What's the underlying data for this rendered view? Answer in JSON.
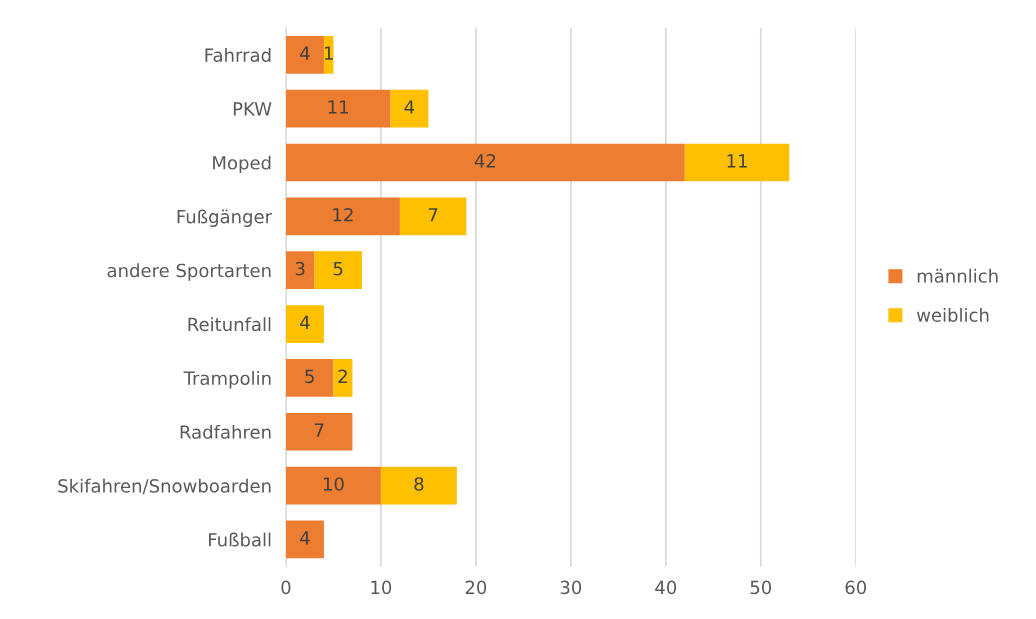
{
  "chart_data": {
    "type": "bar",
    "orientation": "horizontal",
    "stacked": true,
    "categories": [
      "Fahrrad",
      "PKW",
      "Moped",
      "Fußgänger",
      "andere Sportarten",
      "Reitunfall",
      "Trampolin",
      "Radfahren",
      "Skifahren/Snowboarden",
      "Fußball"
    ],
    "series": [
      {
        "name": "männlich",
        "color": "#ed7d31",
        "values": [
          4,
          11,
          42,
          12,
          3,
          null,
          5,
          7,
          10,
          4
        ]
      },
      {
        "name": "weiblich",
        "color": "#ffc000",
        "values": [
          1,
          4,
          11,
          7,
          5,
          4,
          2,
          null,
          8,
          null
        ]
      }
    ],
    "xlim": [
      0,
      60
    ],
    "xticks": [
      0,
      10,
      20,
      30,
      40,
      50,
      60
    ],
    "grid": "x",
    "legend": "right",
    "data_labels": true
  }
}
